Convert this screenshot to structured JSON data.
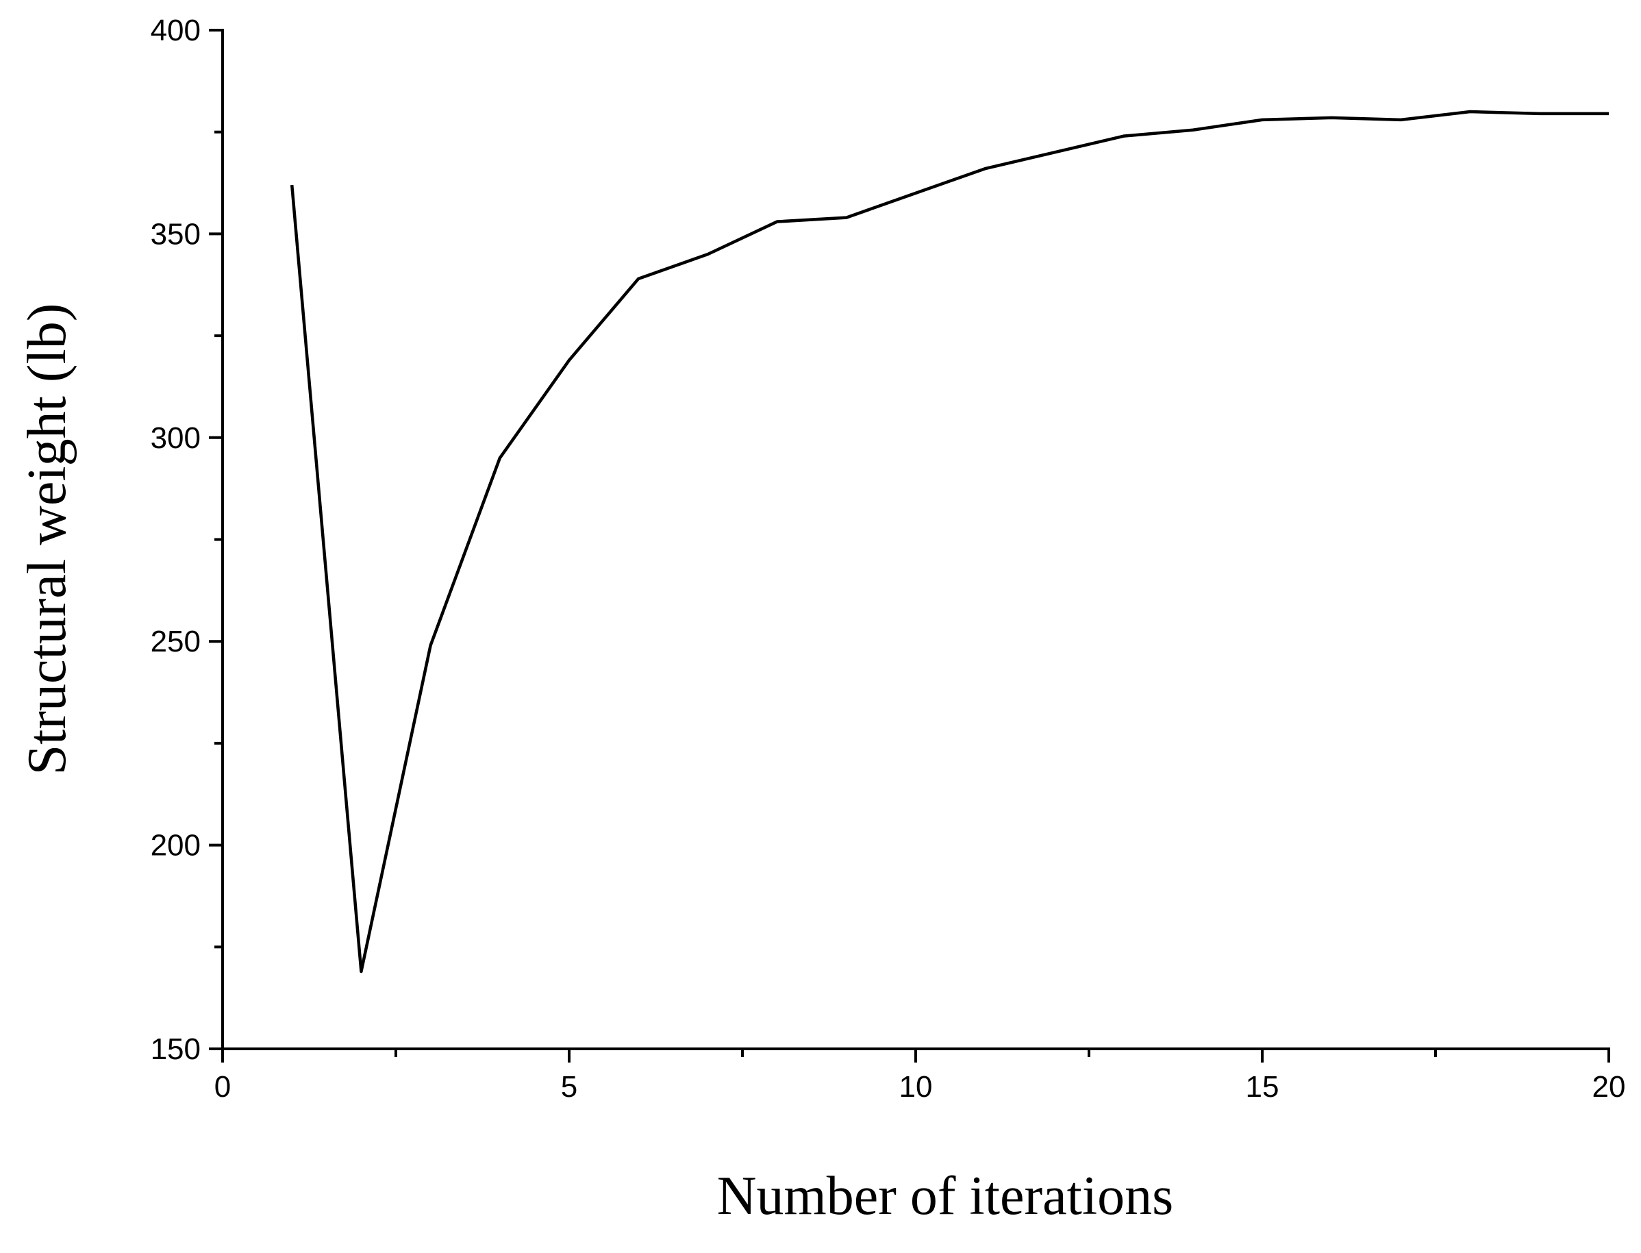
{
  "chart_data": {
    "type": "line",
    "x_label": "Number of iterations",
    "y_label": "Structural weight (lb)",
    "series": [
      {
        "color": "#000000",
        "x": [
          1,
          2,
          3,
          4,
          5,
          6,
          7,
          8,
          9,
          10,
          11,
          12,
          13,
          14,
          15,
          16,
          17,
          18,
          19,
          20
        ],
        "values": [
          362,
          169,
          249,
          295,
          319,
          339,
          345,
          353,
          354,
          360,
          366,
          370,
          374,
          375.5,
          378,
          378.5,
          378,
          380,
          379.5,
          379.5
        ]
      }
    ],
    "xlim": [
      0,
      20
    ],
    "xticks": [
      0,
      5,
      10,
      15,
      20
    ],
    "xminorticks": [
      2.5,
      7.5,
      12.5,
      17.5
    ],
    "ylim": [
      150,
      400
    ],
    "yticks": [
      150,
      200,
      250,
      300,
      350,
      400
    ],
    "yminorticks": [
      175,
      225,
      275,
      325,
      375
    ]
  }
}
